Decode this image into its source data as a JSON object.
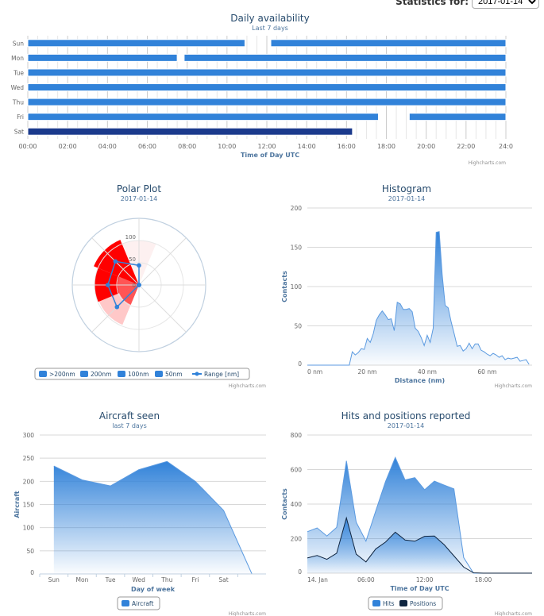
{
  "header": {
    "stat_label": "Statistics for:",
    "date_value": "2017-01-14"
  },
  "credit": "Highcharts.com",
  "chart_data": [
    {
      "id": "availability",
      "type": "bar",
      "title": "Daily availability",
      "subtitle": "Last 7 days",
      "xlabel": "Time of Day UTC",
      "xlim": [
        0,
        24
      ],
      "ticks": [
        "00:00",
        "02:00",
        "04:00",
        "06:00",
        "08:00",
        "10:00",
        "12:00",
        "14:00",
        "16:00",
        "18:00",
        "20:00",
        "22:00",
        "24:0"
      ],
      "categories": [
        "Sun",
        "Mon",
        "Tue",
        "Wed",
        "Thu",
        "Fri",
        "Sat"
      ],
      "intervals": [
        [
          [
            0,
            10.9
          ],
          [
            12.2,
            24
          ]
        ],
        [
          [
            0,
            7.5
          ],
          [
            7.85,
            24
          ]
        ],
        [
          [
            0,
            24
          ]
        ],
        [
          [
            0,
            24
          ]
        ],
        [
          [
            0,
            24
          ]
        ],
        [
          [
            0,
            17.6
          ],
          [
            19.15,
            24
          ]
        ],
        [
          [
            0,
            16.3
          ]
        ]
      ],
      "colors": {
        "normal": "#3182d9",
        "current": "#1b3a8c"
      }
    },
    {
      "id": "polar",
      "type": "polar",
      "title": "Polar Plot",
      "subtitle": "2017-01-14",
      "ylim": [
        0,
        150
      ],
      "yticks": [
        "0",
        "50",
        "100"
      ],
      "directions": [
        0,
        45,
        90,
        135,
        180,
        225,
        270,
        315
      ],
      "series": [
        {
          "name": ">200nm",
          "values": [
            100,
            0,
            0,
            0,
            0,
            0,
            0,
            0
          ],
          "color": "#fdf0f0"
        },
        {
          "name": "200nm",
          "values": [
            0,
            0,
            0,
            0,
            0,
            97,
            0,
            100
          ],
          "color": "#ffc8c8"
        },
        {
          "name": "100nm",
          "values": [
            0,
            0,
            0,
            0,
            0,
            0,
            100,
            110
          ],
          "color": "#ff0000"
        },
        {
          "name": "50nm",
          "values": [
            0,
            0,
            0,
            0,
            0,
            48,
            48,
            0
          ],
          "color": "#ff5555"
        }
      ],
      "range": {
        "name": "Range [nm]",
        "values": [
          44,
          0,
          0,
          0,
          0,
          70,
          70,
          75
        ],
        "color": "#3182d9"
      }
    },
    {
      "id": "histogram",
      "type": "area",
      "title": "Histogram",
      "subtitle": "2017-01-14",
      "xlabel": "Distance (nm)",
      "ylabel": "Contacts",
      "xlim": [
        0,
        75
      ],
      "ylim": [
        0,
        200
      ],
      "xticks": [
        "0 nm",
        "20 nm",
        "40 nm",
        "60 nm"
      ],
      "yticks": [
        "0",
        "50",
        "100",
        "150",
        "200"
      ],
      "values": [
        0,
        0,
        0,
        0,
        0,
        0,
        0,
        0,
        0,
        0,
        0,
        0,
        0,
        0,
        0,
        17,
        13,
        16,
        21,
        20,
        34,
        29,
        40,
        57,
        64,
        69,
        64,
        58,
        59,
        44,
        80,
        78,
        71,
        71,
        72,
        68,
        47,
        43,
        35,
        25,
        38,
        29,
        47,
        169,
        170,
        115,
        76,
        73,
        55,
        40,
        24,
        25,
        18,
        21,
        28,
        21,
        27,
        27,
        19,
        17,
        14,
        12,
        15,
        13,
        10,
        12,
        7,
        9,
        8,
        9,
        10,
        5,
        6,
        7,
        1
      ]
    },
    {
      "id": "aircraft",
      "type": "area",
      "title": "Aircraft seen",
      "subtitle": "last 7 days",
      "xlabel": "Day of week",
      "ylabel": "Aircraft",
      "ylim": [
        0,
        300
      ],
      "categories": [
        "Sun",
        "Mon",
        "Tue",
        "Wed",
        "Thu",
        "Fri",
        "Sat",
        ""
      ],
      "yticks": [
        "0",
        "50",
        "100",
        "150",
        "200",
        "250",
        "300"
      ],
      "series": [
        {
          "name": "Aircraft",
          "values": [
            233,
            203,
            190,
            225,
            243,
            200,
            137,
            0
          ],
          "color": "#3182d9"
        }
      ]
    },
    {
      "id": "hits",
      "type": "area",
      "title": "Hits and positions reported",
      "subtitle": "2017-01-14",
      "xlabel": "Time of Day UTC",
      "ylabel": "Contacts",
      "ylim": [
        0,
        800
      ],
      "xlim": [
        0,
        23
      ],
      "xticks": [
        "14. Jan",
        "06:00",
        "12:00",
        "18:00"
      ],
      "yticks": [
        "0",
        "200",
        "400",
        "600",
        "800"
      ],
      "series": [
        {
          "name": "Hits",
          "values": [
            240,
            262,
            215,
            265,
            650,
            295,
            185,
            360,
            530,
            670,
            540,
            553,
            483,
            533,
            510,
            488,
            90,
            0,
            0,
            0,
            0,
            0,
            0,
            0
          ],
          "color": "#3182d9"
        },
        {
          "name": "Positions",
          "values": [
            88,
            102,
            80,
            115,
            320,
            110,
            65,
            140,
            180,
            237,
            192,
            185,
            213,
            215,
            165,
            100,
            35,
            2,
            0,
            0,
            0,
            0,
            0,
            0
          ],
          "color": "#0f2540"
        }
      ]
    }
  ]
}
